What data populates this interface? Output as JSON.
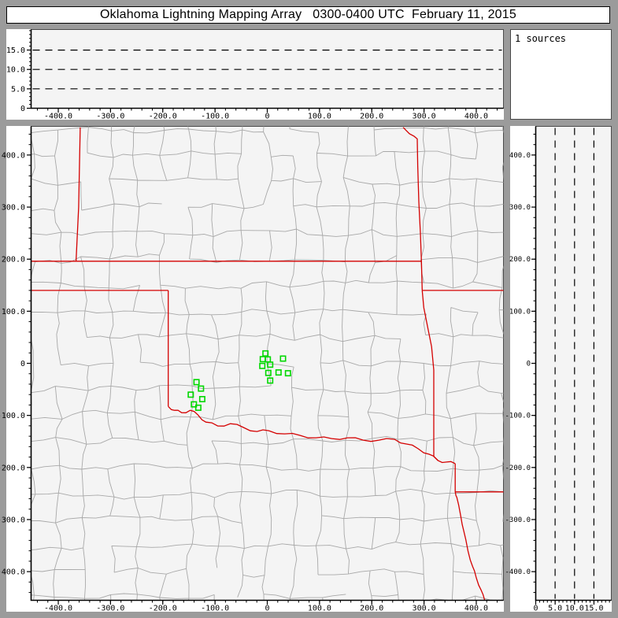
{
  "window": {
    "title": "Oklahoma Lightning Mapping Array   0300-0400 UTC  February 11, 2015"
  },
  "sources_panel": {
    "label": "1 sources"
  },
  "colors": {
    "frame": "#9b9b9b",
    "plot_bg": "#f4f4f4",
    "county_line": "#a8a8a8",
    "state_border": "#d40000",
    "source_marker": "#00d800",
    "axis": "#000000",
    "dashed_line": "#000000"
  },
  "axes": {
    "ew_ticks": [
      {
        "v": -400,
        "t": "-400.0"
      },
      {
        "v": -300,
        "t": "-300.0"
      },
      {
        "v": -200,
        "t": "-200.0"
      },
      {
        "v": -100,
        "t": "-100.0"
      },
      {
        "v": 0,
        "t": "0"
      },
      {
        "v": 100,
        "t": "100.0"
      },
      {
        "v": 200,
        "t": "200.0"
      },
      {
        "v": 300,
        "t": "300.0"
      },
      {
        "v": 400,
        "t": "400.0"
      }
    ],
    "ns_ticks": [
      {
        "v": 400,
        "t": "400.0"
      },
      {
        "v": 300,
        "t": "300.0"
      },
      {
        "v": 200,
        "t": "200.0"
      },
      {
        "v": 100,
        "t": "100.0"
      },
      {
        "v": 0,
        "t": "0"
      },
      {
        "v": -100,
        "t": "-100.0"
      },
      {
        "v": -200,
        "t": "-200.0"
      },
      {
        "v": -300,
        "t": "-300.0"
      },
      {
        "v": -400,
        "t": "-400.0"
      }
    ],
    "alt_ticks": [
      {
        "v": 0,
        "t": "0"
      },
      {
        "v": 5,
        "t": "5.0"
      },
      {
        "v": 10,
        "t": "10.0"
      },
      {
        "v": 15,
        "t": "15.0"
      }
    ],
    "ew_range_km": [
      -452,
      452
    ],
    "ns_range_km": [
      -455,
      455
    ],
    "alt_range_km": [
      0,
      20
    ]
  },
  "chart_data": {
    "type": "scatter",
    "title": "Oklahoma Lightning Mapping Array 0300-0400 UTC February 11, 2015",
    "legend": "1 sources",
    "marker": "open-square",
    "marker_color": "#00d800",
    "panels": [
      {
        "name": "altitude-vs-east-west",
        "ylabel_ticks": [
          0,
          5,
          10,
          15
        ],
        "ylim": [
          0,
          20.3
        ],
        "gridlines_y": [
          5,
          10,
          15
        ],
        "points": []
      },
      {
        "name": "plan-view",
        "xlim": [
          -452,
          452
        ],
        "ylim": [
          -455,
          455
        ],
        "points_km": [
          [
            -3.5,
            19.1
          ],
          [
            -8.6,
            8.0
          ],
          [
            1.1,
            7.5
          ],
          [
            30.1,
            9.0
          ],
          [
            -9.5,
            -5.0
          ],
          [
            5.6,
            -2.6
          ],
          [
            2.0,
            -18.5
          ],
          [
            21.5,
            -17.6
          ],
          [
            39.6,
            -19.1
          ],
          [
            5.6,
            -33.1
          ],
          [
            -135.4,
            -36.1
          ],
          [
            -126.9,
            -48.6
          ],
          [
            -146.4,
            -60.2
          ],
          [
            -124.5,
            -68.8
          ],
          [
            -140.4,
            -78.7
          ],
          [
            -132.0,
            -85.3
          ]
        ]
      },
      {
        "name": "altitude-vs-north-south",
        "xlim": [
          0,
          19.5
        ],
        "gridlines_x": [
          5,
          10,
          15
        ],
        "points": []
      }
    ]
  },
  "map": {
    "county_grid": {
      "spacing_km": 50,
      "jitter_km": 16,
      "edge_keep_prob": 0.84,
      "seed": 987654
    },
    "state_borders_km": [
      {
        "wavy": false,
        "pts": [
          [
            -358,
            453
          ],
          [
            -361,
            300
          ],
          [
            -366,
            196
          ]
        ]
      },
      {
        "wavy": false,
        "pts": [
          [
            -452,
            196
          ],
          [
            295,
            196
          ]
        ]
      },
      {
        "wavy": false,
        "pts": [
          [
            260,
            453
          ],
          [
            266,
            447
          ],
          [
            272,
            441
          ],
          [
            281,
            436
          ],
          [
            287,
            431
          ],
          [
            288,
            380
          ],
          [
            290,
            310
          ],
          [
            293,
            250
          ],
          [
            295,
            196
          ],
          [
            296.5,
            140
          ]
        ]
      },
      {
        "wavy": false,
        "pts": [
          [
            296.5,
            140
          ],
          [
            456,
            140
          ]
        ]
      },
      {
        "wavy": false,
        "pts": [
          [
            -452,
            140
          ],
          [
            -189.6,
            140
          ]
        ]
      },
      {
        "wavy": false,
        "pts": [
          [
            -189.6,
            140
          ],
          [
            -189.6,
            -82.8
          ]
        ]
      },
      {
        "wavy": true,
        "pts": [
          [
            -189.6,
            -82.8
          ],
          [
            -177.6,
            -90.3
          ],
          [
            -164,
            -94.8
          ],
          [
            -147.5,
            -90.3
          ],
          [
            -132.4,
            -99.3
          ],
          [
            -117.4,
            -112.9
          ],
          [
            -94.8,
            -120.4
          ],
          [
            -70.7,
            -115.9
          ],
          [
            -45.1,
            -123.4
          ],
          [
            -19.6,
            -130.9
          ],
          [
            3,
            -129.4
          ],
          [
            33.1,
            -135.4
          ],
          [
            63.2,
            -138.4
          ],
          [
            93.3,
            -143
          ],
          [
            123.4,
            -144.5
          ],
          [
            153.5,
            -143
          ],
          [
            183.6,
            -147.5
          ],
          [
            213.7,
            -147.5
          ],
          [
            243.8,
            -146
          ],
          [
            266.4,
            -155
          ],
          [
            288.9,
            -164
          ],
          [
            310,
            -174.6
          ],
          [
            326.6,
            -186.6
          ],
          [
            343.1,
            -189.6
          ],
          [
            359.7,
            -192.6
          ]
        ]
      },
      {
        "wavy": false,
        "pts": [
          [
            296.5,
            140
          ],
          [
            299.5,
            107
          ],
          [
            307,
            69
          ],
          [
            314.5,
            32
          ],
          [
            318.6,
            -13
          ],
          [
            318.6,
            -104
          ],
          [
            318.6,
            -179
          ],
          [
            326.6,
            -186.6
          ]
        ]
      },
      {
        "wavy": false,
        "pts": [
          [
            359.7,
            -192.6
          ],
          [
            359.7,
            -246.8
          ]
        ]
      },
      {
        "wavy": false,
        "pts": [
          [
            359.7,
            -246.8
          ],
          [
            456,
            -246.8
          ]
        ]
      },
      {
        "wavy": true,
        "pts": [
          [
            359.7,
            -246.8
          ],
          [
            362.7,
            -257
          ],
          [
            370,
            -292
          ],
          [
            376,
            -322
          ],
          [
            384,
            -360
          ],
          [
            393,
            -390
          ],
          [
            400,
            -412
          ],
          [
            409,
            -435
          ],
          [
            417,
            -458
          ]
        ]
      }
    ]
  }
}
